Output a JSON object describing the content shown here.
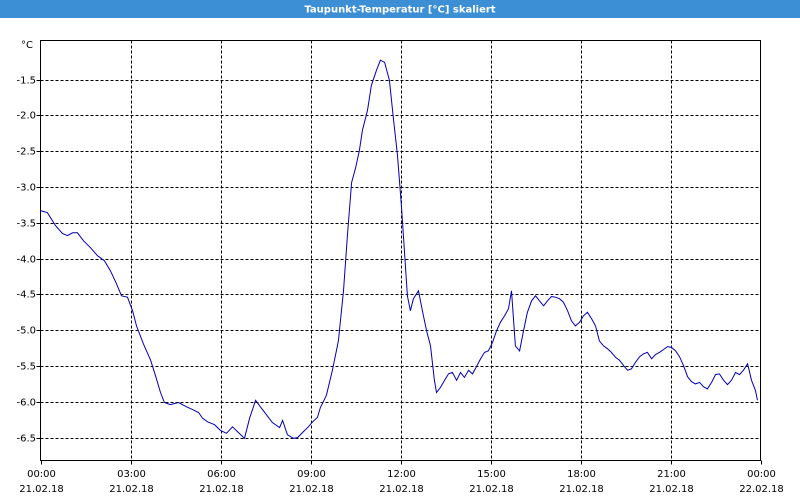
{
  "chart_data": {
    "type": "line",
    "title": "Taupunkt-Temperatur [°C] skaliert",
    "y_label": "°C",
    "x": [
      0,
      0.23,
      0.5,
      0.73,
      0.9,
      1.07,
      1.23,
      1.43,
      1.67,
      1.9,
      2.13,
      2.33,
      2.53,
      2.7,
      2.9,
      3.07,
      3.2,
      3.43,
      3.67,
      3.83,
      4,
      4.13,
      4.33,
      4.6,
      4.87,
      5.13,
      5.27,
      5.4,
      5.57,
      5.8,
      6,
      6.2,
      6.4,
      6.6,
      6.8,
      6.97,
      7.17,
      7.33,
      7.53,
      7.73,
      7.97,
      8.07,
      8.23,
      8.43,
      8.57,
      8.73,
      8.93,
      9.07,
      9.23,
      9.33,
      9.53,
      9.73,
      9.93,
      10.1,
      10.23,
      10.37,
      10.5,
      10.63,
      10.73,
      10.9,
      11.03,
      11.2,
      11.33,
      11.47,
      11.63,
      11.77,
      11.9,
      12.03,
      12.13,
      12.23,
      12.33,
      12.43,
      12.6,
      12.73,
      12.87,
      13,
      13.13,
      13.2,
      13.33,
      13.47,
      13.6,
      13.73,
      13.87,
      14,
      14.13,
      14.27,
      14.4,
      14.53,
      14.67,
      14.8,
      14.93,
      15.07,
      15.2,
      15.33,
      15.47,
      15.6,
      15.7,
      15.83,
      15.97,
      16.1,
      16.23,
      16.37,
      16.5,
      16.63,
      16.77,
      16.9,
      17.03,
      17.17,
      17.3,
      17.43,
      17.57,
      17.7,
      17.83,
      17.97,
      18.1,
      18.23,
      18.37,
      18.5,
      18.63,
      18.77,
      18.9,
      19.03,
      19.17,
      19.3,
      19.43,
      19.57,
      19.7,
      19.83,
      19.97,
      20.1,
      20.23,
      20.37,
      20.5,
      20.63,
      20.77,
      20.9,
      21.03,
      21.17,
      21.3,
      21.43,
      21.57,
      21.7,
      21.83,
      21.97,
      22.1,
      22.23,
      22.37,
      22.5,
      22.63,
      22.77,
      22.9,
      23.03,
      23.17,
      23.3,
      23.43,
      23.57,
      23.7,
      23.83,
      23.9
    ],
    "series": [
      {
        "color": "#0000b4",
        "values": [
          -3.33,
          -3.36,
          -3.54,
          -3.65,
          -3.68,
          -3.64,
          -3.64,
          -3.75,
          -3.85,
          -3.96,
          -4.03,
          -4.17,
          -4.35,
          -4.52,
          -4.54,
          -4.73,
          -4.94,
          -5.19,
          -5.42,
          -5.63,
          -5.87,
          -6.01,
          -6.04,
          -6.01,
          -6.07,
          -6.12,
          -6.15,
          -6.23,
          -6.28,
          -6.32,
          -6.4,
          -6.44,
          -6.35,
          -6.43,
          -6.51,
          -6.23,
          -5.98,
          -6.07,
          -6.18,
          -6.29,
          -6.36,
          -6.26,
          -6.46,
          -6.51,
          -6.5,
          -6.43,
          -6.35,
          -6.28,
          -6.22,
          -6.08,
          -5.91,
          -5.56,
          -5.15,
          -4.45,
          -3.68,
          -2.94,
          -2.74,
          -2.49,
          -2.21,
          -1.93,
          -1.58,
          -1.37,
          -1.23,
          -1.26,
          -1.51,
          -2.07,
          -2.56,
          -3.26,
          -3.89,
          -4.52,
          -4.73,
          -4.56,
          -4.45,
          -4.73,
          -5.01,
          -5.22,
          -5.7,
          -5.87,
          -5.8,
          -5.7,
          -5.61,
          -5.59,
          -5.7,
          -5.59,
          -5.66,
          -5.56,
          -5.61,
          -5.51,
          -5.4,
          -5.31,
          -5.29,
          -5.17,
          -5.01,
          -4.89,
          -4.8,
          -4.7,
          -4.45,
          -5.22,
          -5.29,
          -5.01,
          -4.75,
          -4.59,
          -4.52,
          -4.59,
          -4.66,
          -4.59,
          -4.53,
          -4.54,
          -4.56,
          -4.61,
          -4.73,
          -4.87,
          -4.94,
          -4.89,
          -4.8,
          -4.75,
          -4.84,
          -4.94,
          -5.15,
          -5.22,
          -5.26,
          -5.31,
          -5.38,
          -5.42,
          -5.49,
          -5.56,
          -5.54,
          -5.45,
          -5.37,
          -5.33,
          -5.31,
          -5.4,
          -5.34,
          -5.31,
          -5.27,
          -5.23,
          -5.24,
          -5.29,
          -5.37,
          -5.49,
          -5.65,
          -5.72,
          -5.75,
          -5.73,
          -5.79,
          -5.82,
          -5.73,
          -5.62,
          -5.61,
          -5.7,
          -5.76,
          -5.7,
          -5.59,
          -5.62,
          -5.56,
          -5.47,
          -5.7,
          -5.84,
          -5.98
        ]
      }
    ],
    "xlim": [
      0,
      24
    ],
    "xticks": [
      {
        "value": 0,
        "label": "00:00",
        "date": "21.02.18"
      },
      {
        "value": 3,
        "label": "03:00",
        "date": "21.02.18"
      },
      {
        "value": 6,
        "label": "06:00",
        "date": "21.02.18"
      },
      {
        "value": 9,
        "label": "09:00",
        "date": "21.02.18"
      },
      {
        "value": 12,
        "label": "12:00",
        "date": "21.02.18"
      },
      {
        "value": 15,
        "label": "15:00",
        "date": "21.02.18"
      },
      {
        "value": 18,
        "label": "18:00",
        "date": "21.02.18"
      },
      {
        "value": 21,
        "label": "21:00",
        "date": "21.02.18"
      },
      {
        "value": 24,
        "label": "00:00",
        "date": "22.02.18"
      }
    ],
    "ylim": [
      -6.82,
      -0.955
    ],
    "yticks": [
      -1.5,
      {
        "value": -2,
        "label": "-2.0"
      },
      -2.5,
      {
        "value": -3,
        "label": "-3.0"
      },
      -3.5,
      {
        "value": -4,
        "label": "-4.0"
      },
      -4.5,
      {
        "value": -5,
        "label": "-5.0"
      },
      -5.5,
      {
        "value": -6,
        "label": "-6.0"
      },
      -6.5
    ],
    "grid": true
  }
}
